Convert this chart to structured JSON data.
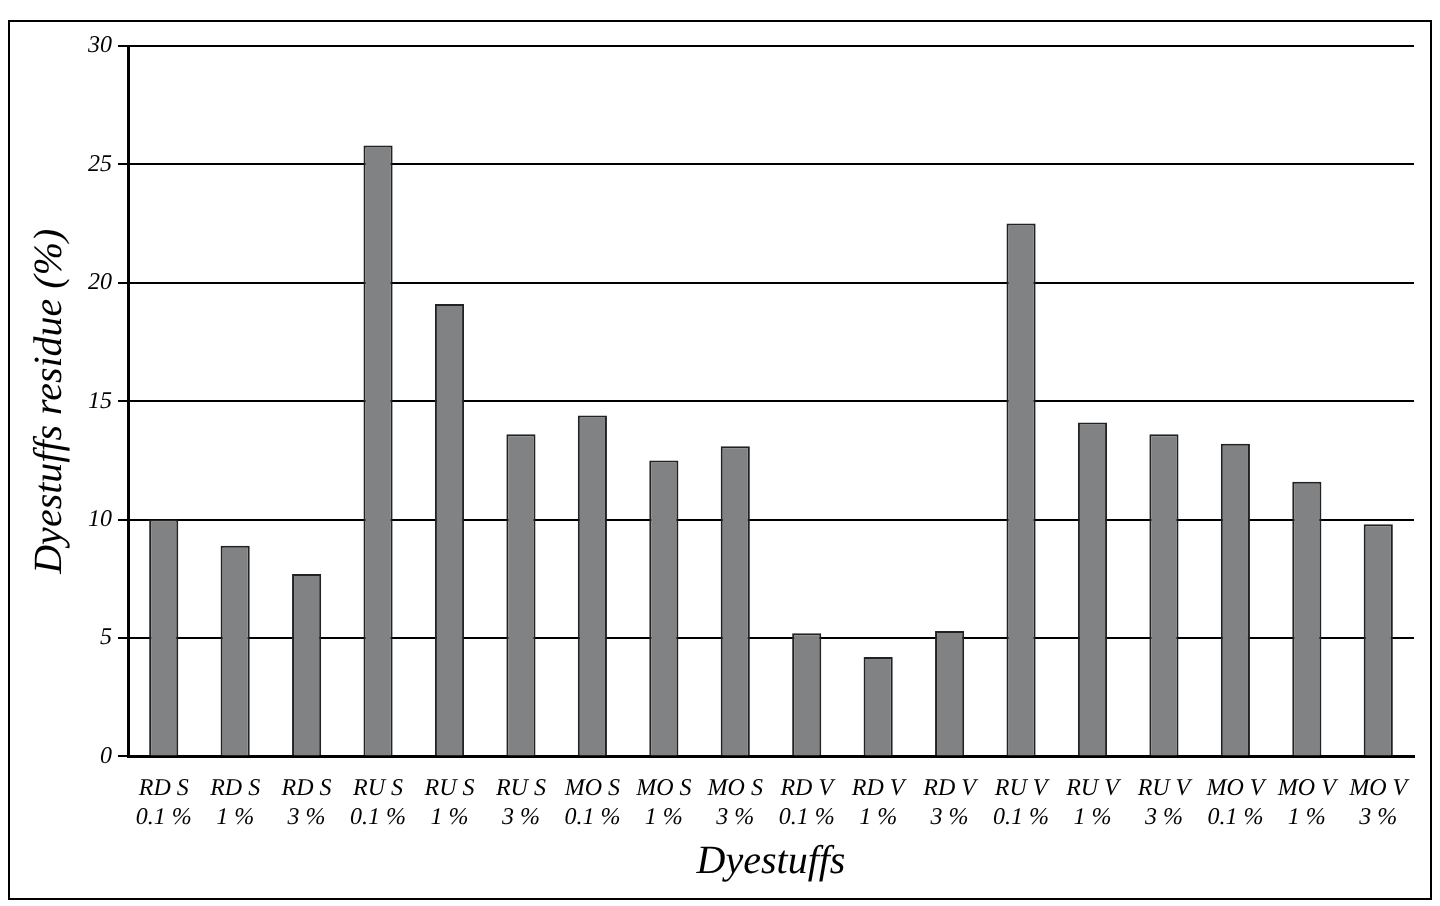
{
  "chart_data": {
    "type": "bar",
    "xlabel": "Dyestuffs",
    "ylabel": "Dyestuffs residue (%)",
    "categories": [
      "RD S\n0.1 %",
      "RD S\n1 %",
      "RD S\n3 %",
      "RU S\n0.1 %",
      "RU S\n1 %",
      "RU S\n3 %",
      "MO S\n0.1 %",
      "MO S\n1 %",
      "MO S\n3 %",
      "RD V\n0.1 %",
      "RD V\n1 %",
      "RD V\n3 %",
      "RU V\n0.1 %",
      "RU V\n1 %",
      "RU V\n3 %",
      "MO V\n0.1 %",
      "MO V\n1 %",
      "MO V\n3 %"
    ],
    "values": [
      10.0,
      8.9,
      7.7,
      25.8,
      19.1,
      13.6,
      14.4,
      12.5,
      13.1,
      5.2,
      4.2,
      5.3,
      22.5,
      14.1,
      13.6,
      13.2,
      11.6,
      9.8
    ],
    "color": "#808284",
    "ylim": [
      0,
      30
    ],
    "yticks": [
      0,
      5,
      10,
      15,
      20,
      25,
      30
    ],
    "grid": "y",
    "legend": false
  }
}
